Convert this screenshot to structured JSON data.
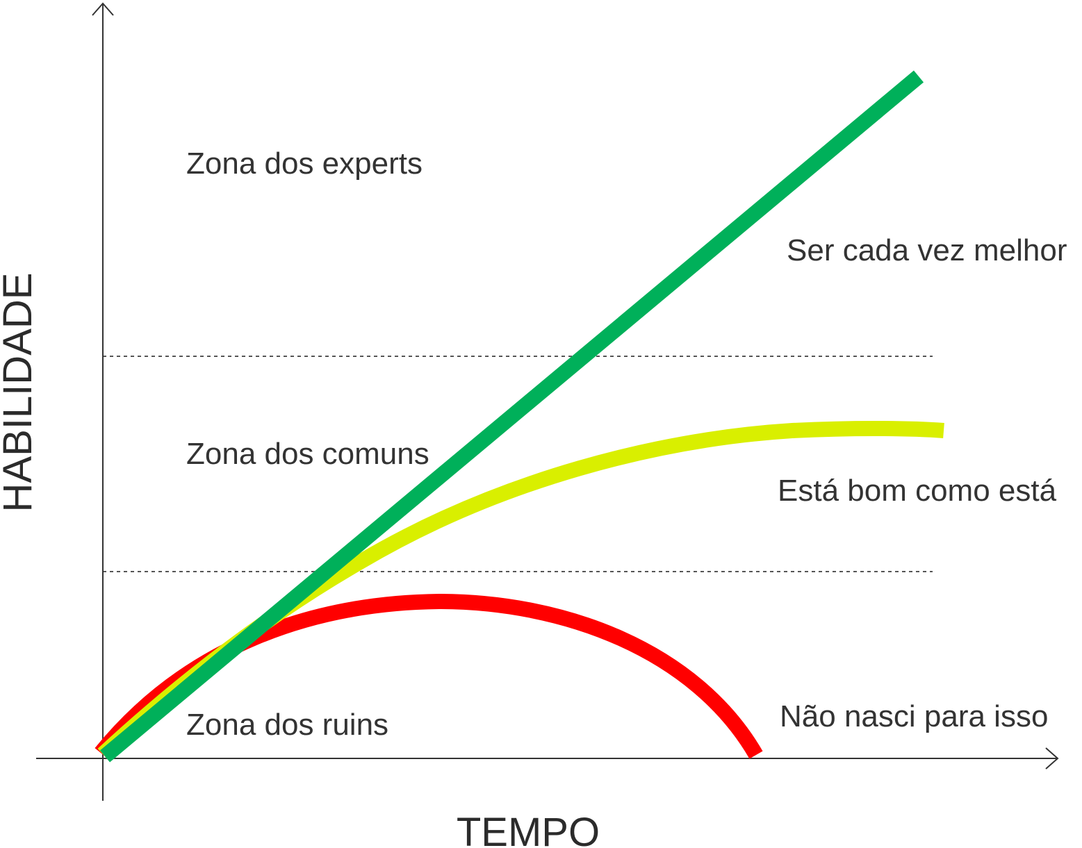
{
  "axes": {
    "x_title": "TEMPO",
    "y_title": "HABILIDADE"
  },
  "zones": [
    {
      "id": "experts",
      "label": "Zona dos experts"
    },
    {
      "id": "comuns",
      "label": "Zona dos comuns"
    },
    {
      "id": "ruins",
      "label": "Zona dos ruins"
    }
  ],
  "curves": [
    {
      "id": "melhor",
      "label": "Ser cada vez melhor",
      "color": "#00b05a"
    },
    {
      "id": "bom",
      "label": "Está bom como está",
      "color": "#d9ef00"
    },
    {
      "id": "nasci",
      "label": "Não nasci para isso",
      "color": "#ff0000"
    }
  ],
  "colors": {
    "axis": "#333333",
    "text": "#333333",
    "zone_divider": "#555555"
  }
}
